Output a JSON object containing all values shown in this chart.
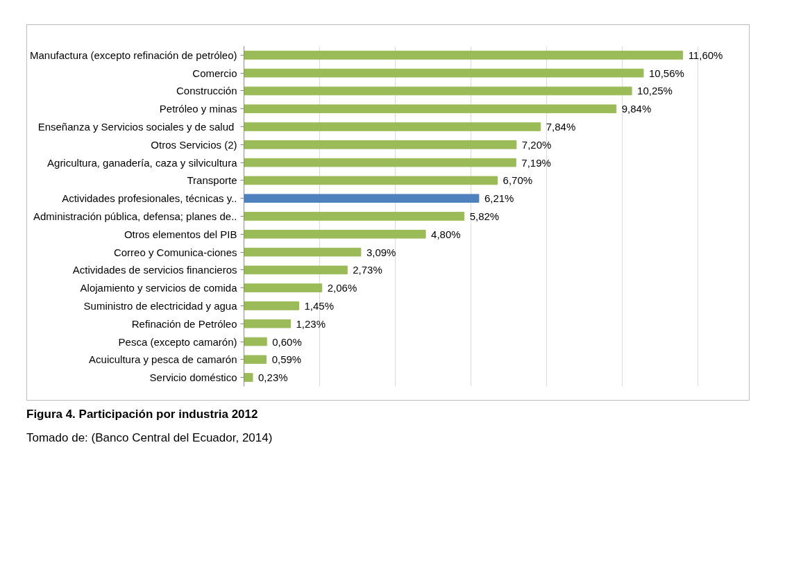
{
  "chart_data": {
    "type": "bar",
    "orientation": "horizontal",
    "title": "Figura 4.  Participación por industria 2012",
    "annotations": [
      "Tomado de: (Banco Central del Ecuador, 2014)"
    ],
    "categories": [
      "Manufactura (excepto refinación de petróleo)",
      "Comercio",
      "Construcción",
      "Petróleo y minas",
      "Enseñanza  y Servicios sociales y de salud",
      "Otros Servicios (2)",
      "Agricultura, ganadería, caza y silvicultura",
      "Transporte",
      "Actividades profesionales, técnicas y..",
      "Administración pública, defensa; planes de..",
      "Otros elementos del PIB",
      "Correo y Comunica-ciones",
      "Actividades de servicios financieros",
      "Alojamiento y servicios de comida",
      "Suministro de electricidad y agua",
      "Refinación de Petróleo",
      "Pesca (excepto camarón)",
      "Acuicultura y pesca de camarón",
      "Servicio doméstico"
    ],
    "values": [
      11.6,
      10.56,
      10.25,
      9.84,
      7.84,
      7.2,
      7.19,
      6.7,
      6.21,
      5.82,
      4.8,
      3.09,
      2.73,
      2.06,
      1.45,
      1.23,
      0.6,
      0.59,
      0.23
    ],
    "value_labels": [
      "11,60%",
      "10,56%",
      "10,25%",
      "9,84%",
      "7,84%",
      "7,20%",
      "7,19%",
      "6,70%",
      "6,21%",
      "5,82%",
      "4,80%",
      "3,09%",
      "2,73%",
      "2,06%",
      "1,45%",
      "1,23%",
      "0,60%",
      "0,59%",
      "0,23%"
    ],
    "colors": [
      "#9bbb59",
      "#9bbb59",
      "#9bbb59",
      "#9bbb59",
      "#9bbb59",
      "#9bbb59",
      "#9bbb59",
      "#9bbb59",
      "#4f81bd",
      "#9bbb59",
      "#9bbb59",
      "#9bbb59",
      "#9bbb59",
      "#9bbb59",
      "#9bbb59",
      "#9bbb59",
      "#9bbb59",
      "#9bbb59",
      "#9bbb59"
    ],
    "xticks": [
      {
        "value": 0,
        "label": null
      },
      {
        "value": 2,
        "label": null
      },
      {
        "value": 4,
        "label": null
      },
      {
        "value": 6,
        "label": null
      },
      {
        "value": 8,
        "label": null
      },
      {
        "value": 10,
        "label": null
      },
      {
        "value": 12,
        "label": null
      }
    ],
    "grid": "x",
    "tick_labels": "y"
  }
}
